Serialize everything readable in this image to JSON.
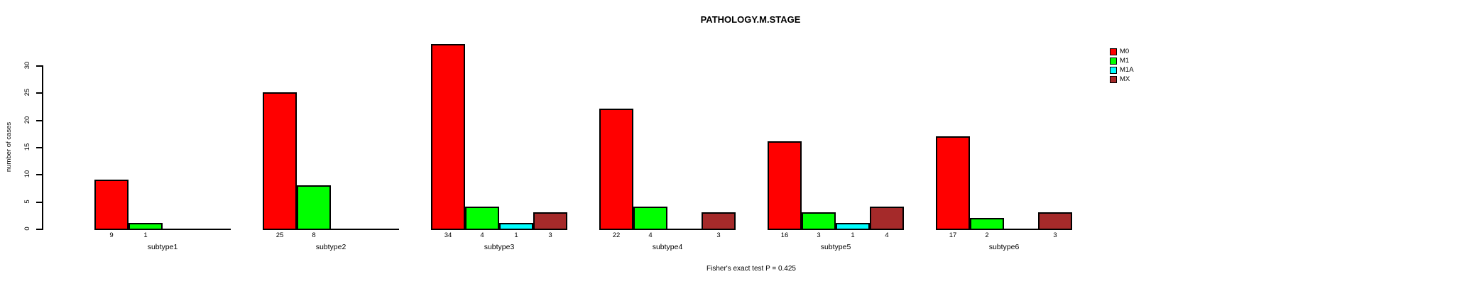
{
  "chart_data": {
    "type": "bar",
    "title": "PATHOLOGY.M.STAGE",
    "xlabel": "",
    "ylabel": "number of cases",
    "ylim": [
      0,
      35
    ],
    "yticks": [
      0,
      5,
      10,
      15,
      20,
      25,
      30
    ],
    "grid": false,
    "legend_position": "right",
    "bar_value_labels_shown": true,
    "categories": [
      "subtype1",
      "subtype2",
      "subtype3",
      "subtype4",
      "subtype5",
      "subtype6"
    ],
    "series": [
      {
        "name": "M0",
        "color": "#ff0000",
        "values": [
          9,
          25,
          34,
          22,
          16,
          17
        ]
      },
      {
        "name": "M1",
        "color": "#00ff00",
        "values": [
          1,
          8,
          4,
          4,
          3,
          2
        ]
      },
      {
        "name": "M1A",
        "color": "#00ffff",
        "values": [
          0,
          0,
          1,
          0,
          1,
          0
        ]
      },
      {
        "name": "MX",
        "color": "#a52a2a",
        "values": [
          0,
          0,
          3,
          3,
          4,
          3
        ]
      }
    ],
    "annotation": "Fisher's exact test P = 0.425",
    "colors": {
      "axis": "#000000",
      "text": "#000000",
      "background": "#ffffff"
    }
  }
}
